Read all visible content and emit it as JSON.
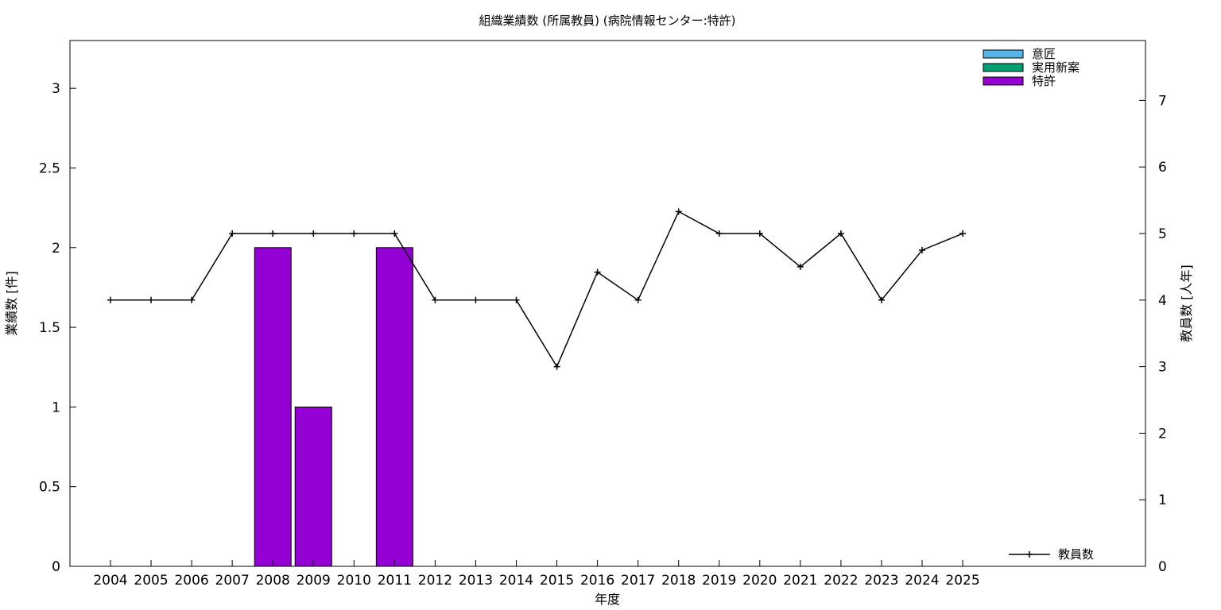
{
  "chart_data": {
    "type": "bar",
    "title": "組織業績数 (所属教員) (病院情報センター:特許)",
    "xlabel": "年度",
    "ylabel": "業績数 [件]",
    "y2label": "教員数 [人年]",
    "categories": [
      "2004",
      "2005",
      "2006",
      "2007",
      "2008",
      "2009",
      "2010",
      "2011",
      "2012",
      "2013",
      "2014",
      "2015",
      "2016",
      "2017",
      "2018",
      "2019",
      "2020",
      "2021",
      "2022",
      "2023",
      "2024",
      "2025"
    ],
    "ylim": [
      0,
      3.3
    ],
    "y2lim": [
      0,
      7.9
    ],
    "yticks": [
      "0",
      "0.5",
      "1",
      "1.5",
      "2",
      "2.5",
      "3"
    ],
    "y2ticks": [
      "0",
      "1",
      "2",
      "3",
      "4",
      "5",
      "6",
      "7"
    ],
    "grid": false,
    "bar_series": [
      {
        "name": "意匠",
        "color": "#56b4e9",
        "values": [
          0,
          0,
          0,
          0,
          0,
          0,
          0,
          0,
          0,
          0,
          0,
          0,
          0,
          0,
          0,
          0,
          0,
          0,
          0,
          0,
          0,
          0
        ]
      },
      {
        "name": "実用新案",
        "color": "#009e73",
        "values": [
          0,
          0,
          0,
          0,
          0,
          0,
          0,
          0,
          0,
          0,
          0,
          0,
          0,
          0,
          0,
          0,
          0,
          0,
          0,
          0,
          0,
          0
        ]
      },
      {
        "name": "特許",
        "color": "#9400d3",
        "values": [
          0,
          0,
          0,
          0,
          2,
          1,
          0,
          2,
          0,
          0,
          0,
          0,
          0,
          0,
          0,
          0,
          0,
          0,
          0,
          0,
          0,
          0
        ]
      }
    ],
    "line_series": [
      {
        "name": "教員数",
        "color": "#000000",
        "axis": "y2",
        "values": [
          4,
          4,
          4,
          5,
          5,
          5,
          5,
          5,
          4,
          4,
          4,
          3,
          4.42,
          4,
          5.33,
          5,
          5,
          4.5,
          5,
          4,
          4.75,
          5
        ]
      }
    ],
    "bar_legend_position": "top-right",
    "line_legend_position": "bottom-right"
  }
}
